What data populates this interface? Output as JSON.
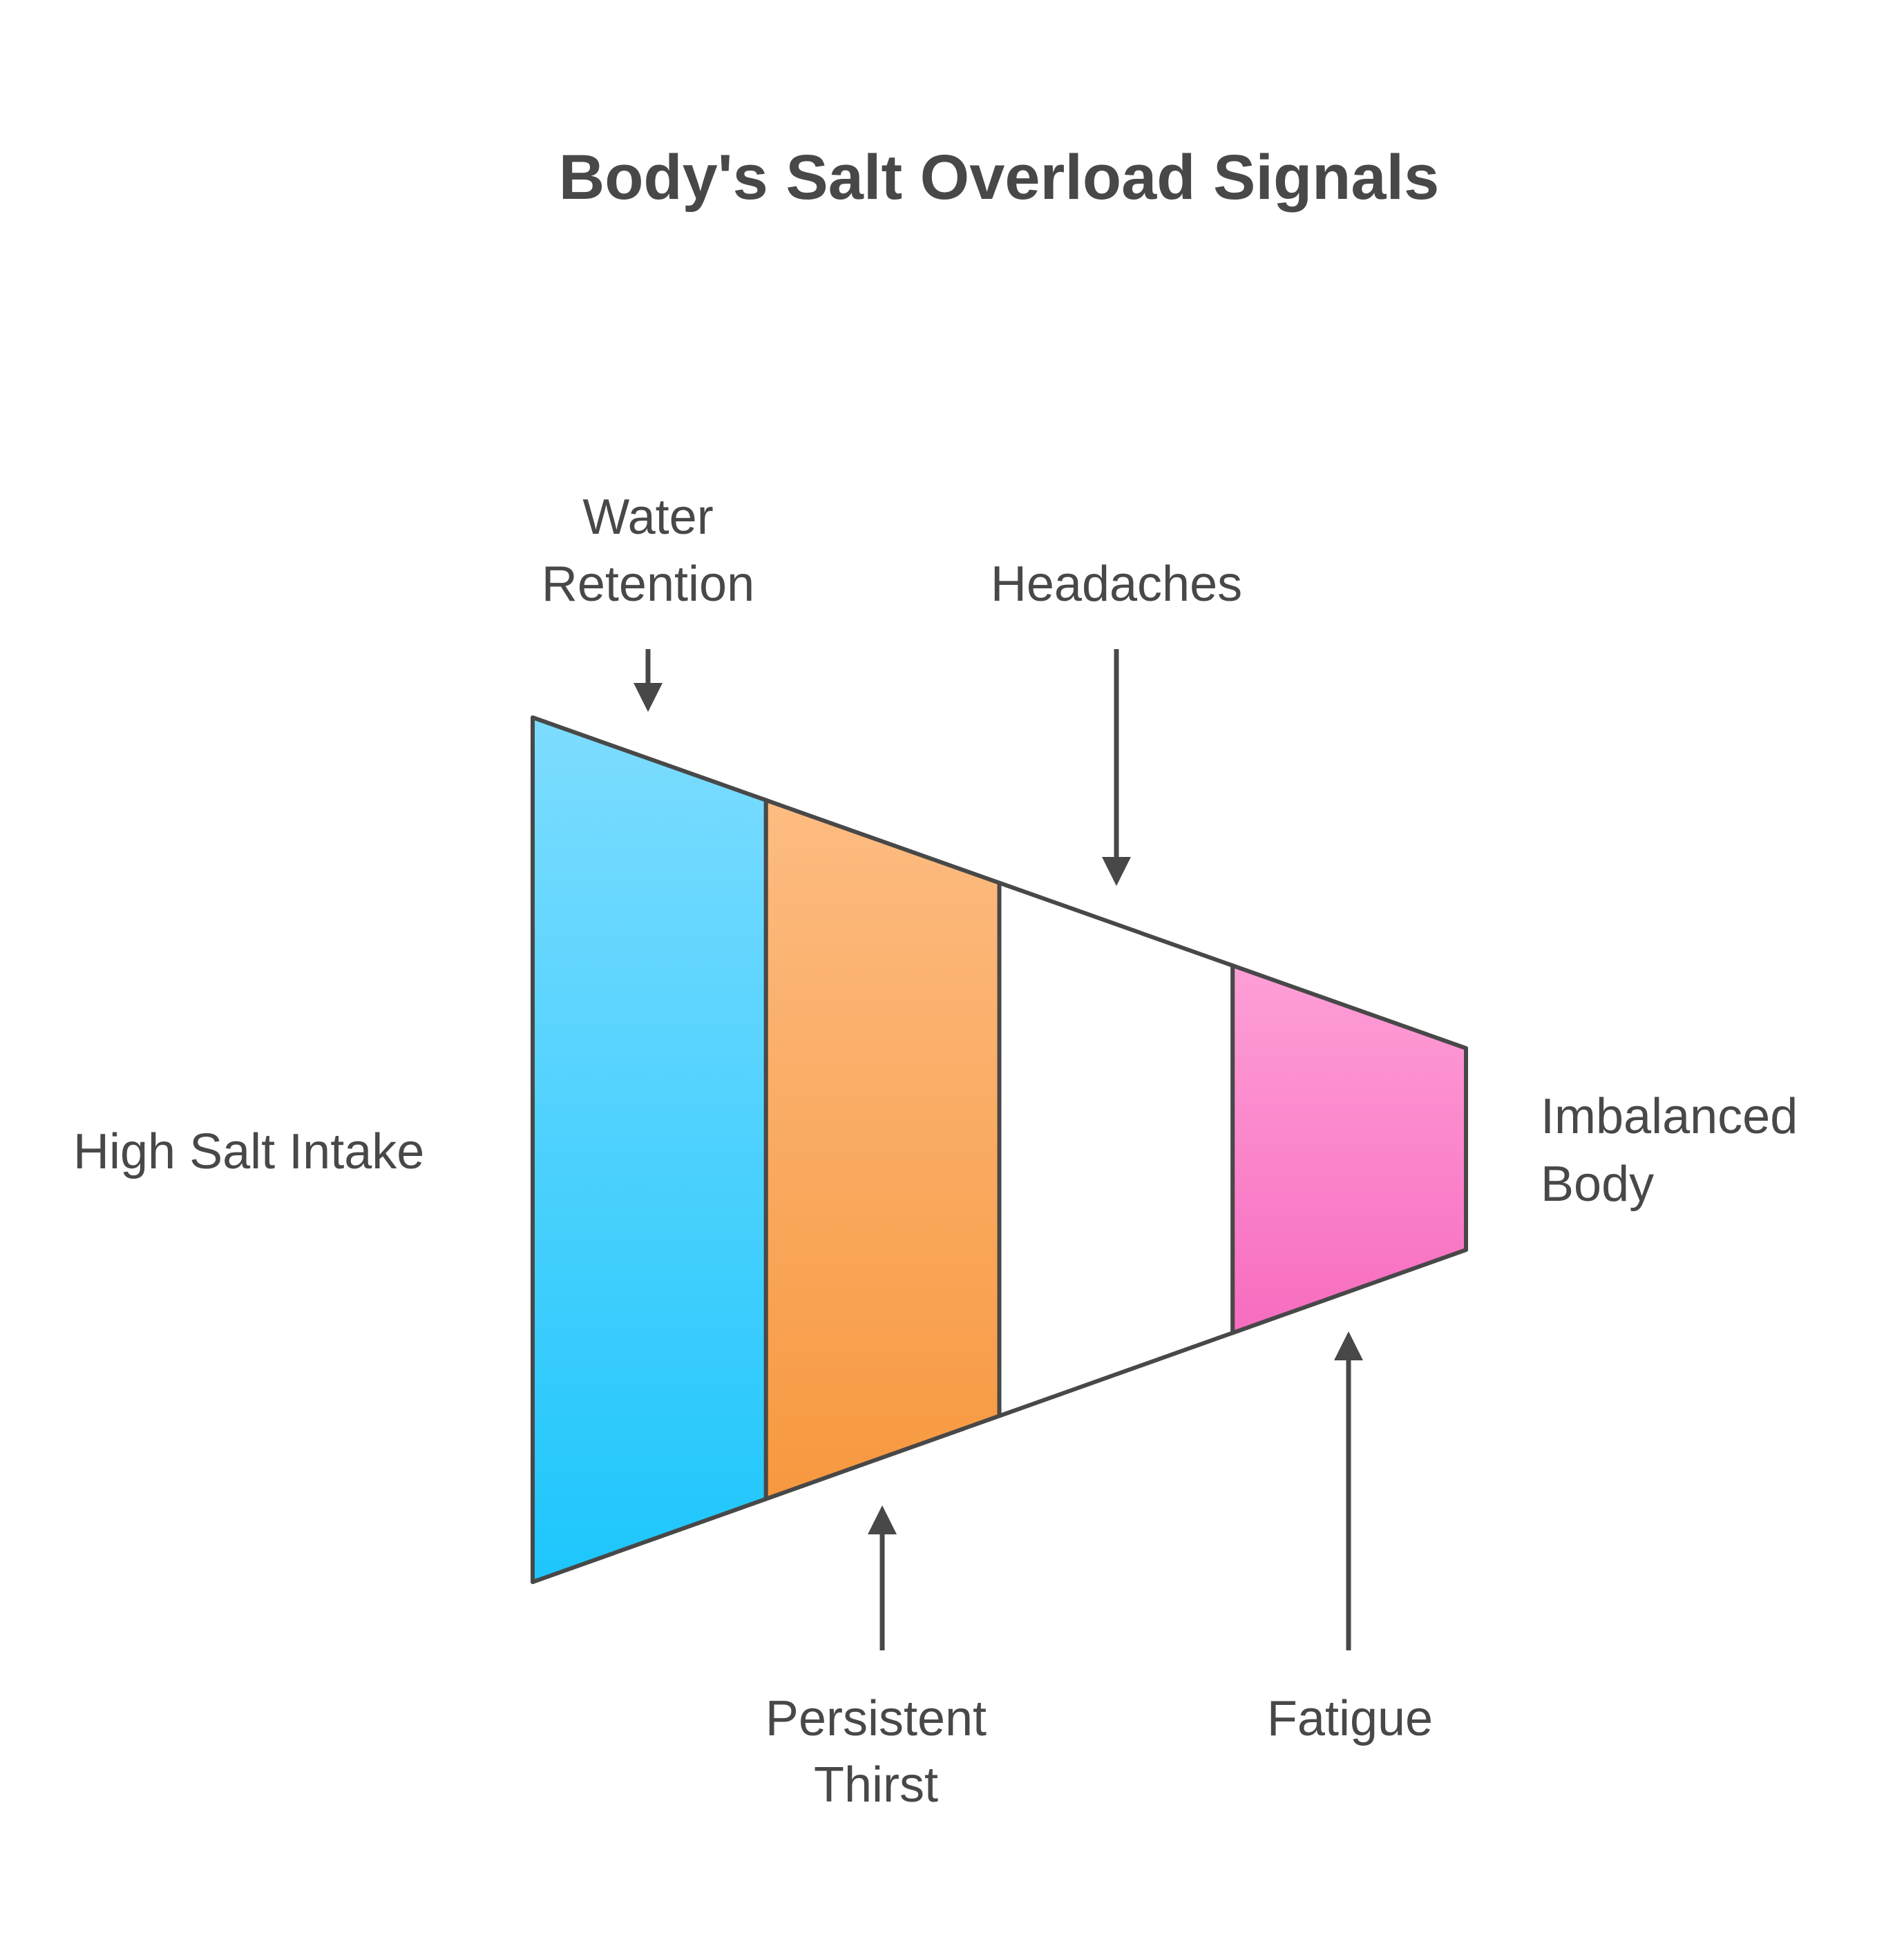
{
  "title": "Body's Salt Overload Signals",
  "input_label": "High Salt Intake",
  "output_label": [
    "Imbalanced",
    "Body"
  ],
  "segments": [
    {
      "name": "Water Retention",
      "lines": [
        "Water",
        "Retention"
      ],
      "side": "top",
      "color_top": "#7DDCFF",
      "color_bottom": "#1DC6FC"
    },
    {
      "name": "Persistent Thirst",
      "lines": [
        "Persistent",
        "Thirst"
      ],
      "side": "bottom",
      "color_top": "#FDBC82",
      "color_bottom": "#F7983F"
    },
    {
      "name": "Headaches",
      "lines": [
        "Headaches"
      ],
      "side": "top",
      "color_top": "#FFFFFF",
      "color_bottom": "#FFFFFF"
    },
    {
      "name": "Fatigue",
      "lines": [
        "Fatigue"
      ],
      "side": "bottom",
      "color_top": "#FE9FD7",
      "color_bottom": "#F76CBF"
    }
  ],
  "colors": {
    "stroke": "#484848",
    "text": "#484848"
  }
}
